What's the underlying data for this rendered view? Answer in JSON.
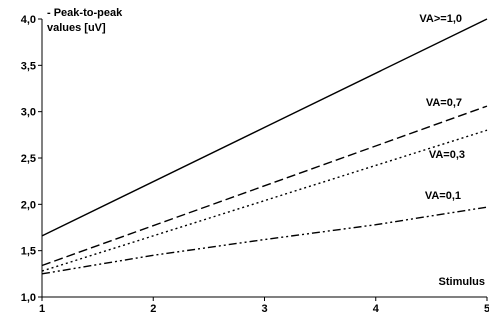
{
  "chart_data": {
    "type": "line",
    "title": "",
    "ylabel_lines": [
      "Peak-to-peak",
      "values [uV]"
    ],
    "xlabel": "Stimulus",
    "xlim": [
      1,
      5
    ],
    "ylim": [
      1.0,
      4.0
    ],
    "xticks": [
      1,
      2,
      3,
      4,
      5
    ],
    "yticks": [
      "1,0",
      "1,5",
      "2,0",
      "2,5",
      "3,0",
      "3,5",
      "4,0"
    ],
    "ytick_values": [
      1.0,
      1.5,
      2.0,
      2.5,
      3.0,
      3.5,
      4.0
    ],
    "grid": false,
    "legend": "none",
    "series": [
      {
        "name": "VA>=1,0",
        "dash": "solid",
        "x": [
          1,
          5
        ],
        "values": [
          1.66,
          4.0
        ]
      },
      {
        "name": "VA=0,7",
        "dash": "dashed",
        "x": [
          1,
          5
        ],
        "values": [
          1.34,
          3.06
        ]
      },
      {
        "name": "VA=0,3",
        "dash": "dotted",
        "x": [
          1,
          5
        ],
        "values": [
          1.28,
          2.8
        ]
      },
      {
        "name": "VA=0,1",
        "dash": "dashdotdot",
        "x": [
          1,
          2,
          3,
          4,
          5
        ],
        "values": [
          1.25,
          1.45,
          1.62,
          1.78,
          1.97
        ]
      }
    ]
  }
}
